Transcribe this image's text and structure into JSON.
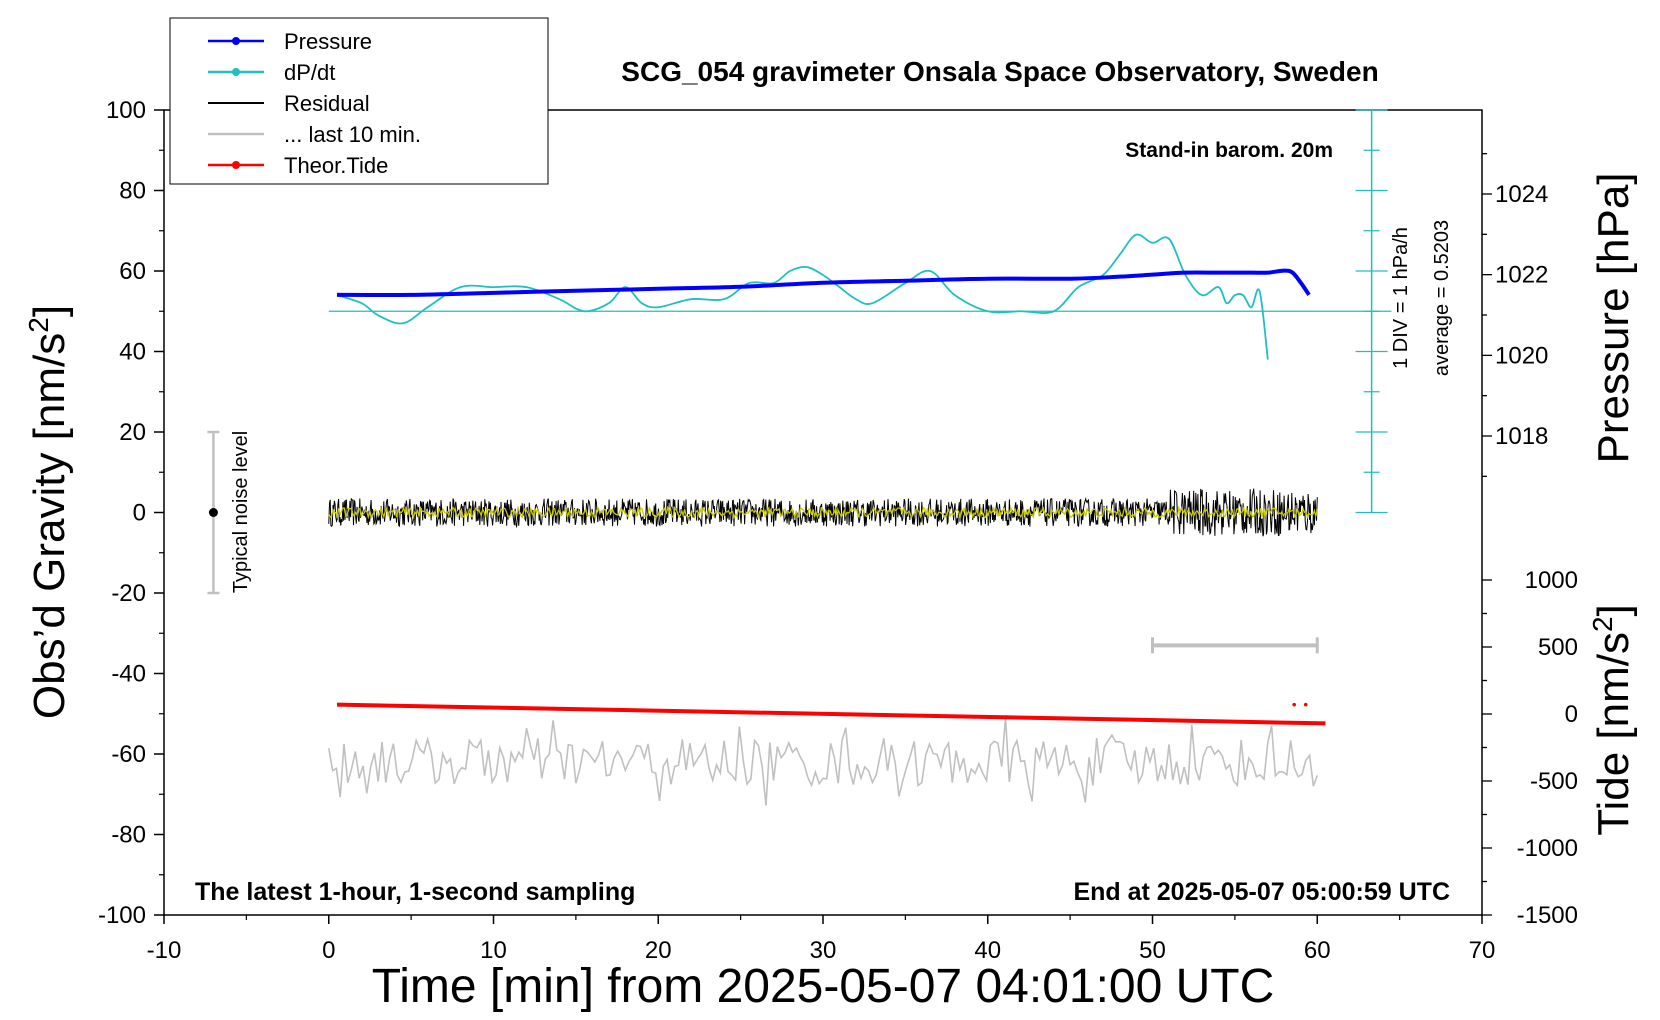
{
  "chart_data": {
    "type": "line",
    "title": "SCG_054 gravimeter Onsala Space Observatory, Sweden",
    "xlabel": "Time [min] from 2025-05-07 04:01:00 UTC",
    "ylabel_left": "Obs’d Gravity [nm/s",
    "ylabel_left_sup": "2",
    "ylabel_left_close": "]",
    "ylabel_right_pressure": "Pressure [hPa]",
    "ylabel_right_tide": "Tide [nm/s",
    "ylabel_right_tide_sup": "2",
    "ylabel_right_tide_close": "]",
    "xlim": [
      -10,
      70
    ],
    "ylim": [
      -100,
      100
    ],
    "x_ticks": [
      "-10",
      "0",
      "10",
      "20",
      "30",
      "40",
      "50",
      "60",
      "70"
    ],
    "y_ticks": [
      "100",
      "80",
      "60",
      "40",
      "20",
      "0",
      "-20",
      "-40",
      "-60",
      "-80",
      "-100"
    ],
    "pressure_ticks": [
      "1024",
      "1022",
      "1020",
      "1018"
    ],
    "tide_ticks": [
      "1000",
      "500",
      "0",
      "-500",
      "-1000",
      "-1500"
    ],
    "legend": {
      "placement": "top-left",
      "entries": [
        {
          "label": "Pressure",
          "color": "#0000ff",
          "marker": true
        },
        {
          "label": "dP/dt",
          "color": "#20c0c0",
          "marker": true
        },
        {
          "label": "Residual",
          "color": "#000000",
          "marker": false
        },
        {
          "label": "... last 10 min.",
          "color": "#c0c0c0",
          "marker": false
        },
        {
          "label": "Theor.Tide",
          "color": "#ff0000",
          "marker": true
        }
      ]
    },
    "annotations": {
      "barometer": "Stand-in barom. 20m",
      "div_label": "1 DIV = 1 hPa/h",
      "average": "average = 0.5203",
      "noise": "Typical noise level",
      "bottom_left": "The latest 1-hour, 1-second sampling",
      "bottom_right": "End at 2025-05-07 05:00:59 UTC"
    },
    "noise_bar": {
      "x": -7,
      "y_min": -20,
      "y_max": 20
    },
    "last10_bar": {
      "x_start": 50,
      "x_end": 60,
      "y": -33
    },
    "series": [
      {
        "name": "Pressure",
        "color": "#0000ff",
        "unit": "hPa",
        "x": [
          0.5,
          5,
          10,
          15,
          20,
          25,
          30,
          35,
          40,
          45,
          48,
          50,
          52,
          54,
          56,
          57,
          58,
          58.5,
          59,
          59.5
        ],
        "values": [
          1021.5,
          1021.5,
          1021.55,
          1021.6,
          1021.65,
          1021.7,
          1021.8,
          1021.85,
          1021.9,
          1021.9,
          1021.95,
          1022.0,
          1022.05,
          1022.05,
          1022.05,
          1022.05,
          1022.1,
          1022.05,
          1021.8,
          1021.5
        ]
      },
      {
        "name": "dP/dt",
        "color": "#20c0c0",
        "baseline": 50,
        "x": [
          0.5,
          2,
          3,
          4.5,
          6,
          8,
          10,
          12,
          14,
          15.5,
          17,
          18,
          19,
          20,
          22,
          24,
          25.5,
          27,
          28,
          29,
          30,
          31,
          32,
          33,
          35,
          36.5,
          38,
          40,
          42,
          44,
          45.5,
          47,
          48,
          49,
          50,
          51,
          52,
          53,
          54,
          54.5,
          55,
          55.5,
          56,
          56.5,
          57
        ],
        "values": [
          54,
          52,
          49,
          47,
          51,
          56,
          56,
          56,
          53,
          50,
          52,
          56,
          52,
          51,
          53,
          53,
          57,
          57,
          60,
          61,
          59,
          56,
          53,
          52,
          57,
          60,
          54,
          50,
          50,
          50,
          56,
          59,
          64,
          69,
          67,
          68,
          59,
          54,
          56,
          52,
          54,
          54,
          51,
          55,
          38
        ]
      },
      {
        "name": "Residual",
        "color": "#000000",
        "x_range": [
          0,
          60
        ],
        "center": 0,
        "amplitude": 3.5
      },
      {
        "name": "Residual (smoothed)",
        "color": "#c8c800",
        "x_range": [
          0,
          60
        ],
        "center": 0,
        "amplitude": 1.2
      },
      {
        "name": "... last 10 min.",
        "color": "#c0c0c0",
        "x_range": [
          0,
          60
        ],
        "center": -62,
        "amplitude": 6
      },
      {
        "name": "Theor.Tide",
        "color": "#ff0000",
        "unit": "nm/s2",
        "x": [
          0.5,
          60.5
        ],
        "values": [
          70,
          -70
        ]
      }
    ]
  }
}
